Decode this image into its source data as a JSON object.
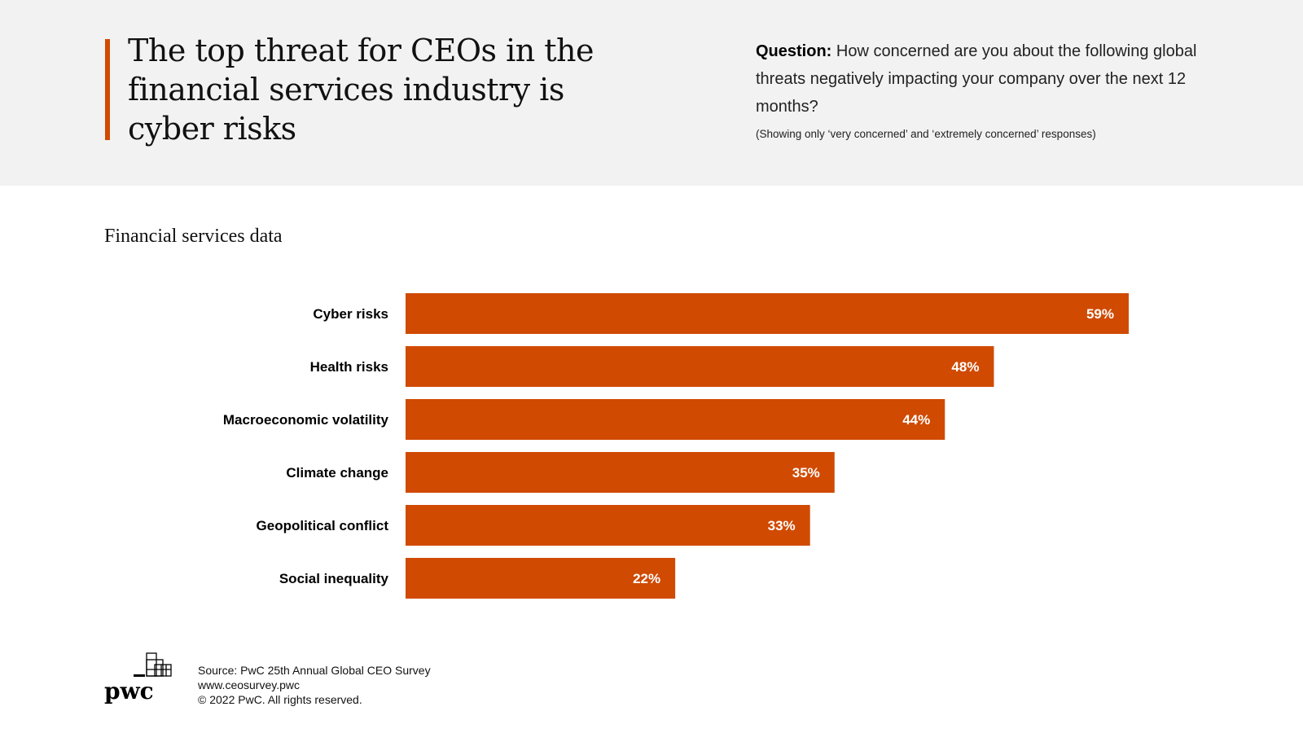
{
  "header": {
    "title": "The top threat for CEOs in the financial services industry is cyber risks",
    "question_label": "Question:",
    "question_text": " How concerned are you about the following global threats negatively impacting your company over the next 12 months?",
    "note": "(Showing only ‘very concerned’ and ‘extremely concerned’ responses)"
  },
  "subtitle": "Financial services data",
  "colors": {
    "accent": "#d04a02",
    "bar": "#d04a02",
    "header_bg": "#f2f2f2"
  },
  "chart_data": {
    "type": "bar",
    "orientation": "horizontal",
    "title": "Financial services data",
    "categories": [
      "Cyber risks",
      "Health risks",
      "Macroeconomic volatility",
      "Climate change",
      "Geopolitical conflict",
      "Social inequality"
    ],
    "values": [
      59,
      48,
      44,
      35,
      33,
      22
    ],
    "labels": [
      "59%",
      "48%",
      "44%",
      "35%",
      "33%",
      "22%"
    ],
    "unit": "%",
    "xlabel": "",
    "ylabel": "",
    "grid": false,
    "legend": "none"
  },
  "footer": {
    "logo_text": "pwc",
    "source": "Source: PwC 25th Annual Global CEO Survey",
    "url": "www.ceosurvey.pwc",
    "copyright": "© 2022 PwC. All rights reserved."
  }
}
